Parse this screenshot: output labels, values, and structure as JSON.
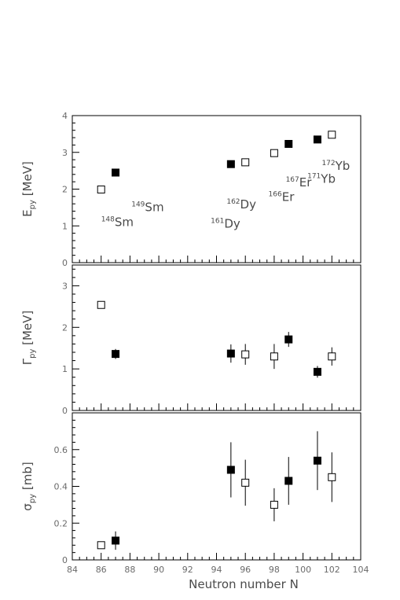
{
  "chart_data": [
    {
      "type": "scatter",
      "ylabel": "E",
      "ylabel_sub": "py",
      "ylabel_unit": " [MeV]",
      "xlim": [
        84,
        104
      ],
      "ylim": [
        0,
        4
      ],
      "yticks": [
        0,
        1,
        2,
        3,
        4
      ],
      "series": [
        {
          "marker": "filled-square",
          "points": [
            {
              "x": 87,
              "y": 2.45
            },
            {
              "x": 95,
              "y": 2.68
            },
            {
              "x": 99,
              "y": 3.23
            },
            {
              "x": 101,
              "y": 3.35
            }
          ]
        },
        {
          "marker": "open-square",
          "points": [
            {
              "x": 86,
              "y": 1.99
            },
            {
              "x": 96,
              "y": 2.73
            },
            {
              "x": 98,
              "y": 2.98
            },
            {
              "x": 102,
              "y": 3.48
            }
          ]
        }
      ],
      "annotations": [
        {
          "mass": "148",
          "element": "Sm",
          "x": 86.0,
          "y": 1.0
        },
        {
          "mass": "149",
          "element": "Sm",
          "x": 88.1,
          "y": 1.4
        },
        {
          "mass": "161",
          "element": "Dy",
          "x": 93.6,
          "y": 0.95
        },
        {
          "mass": "162",
          "element": "Dy",
          "x": 94.7,
          "y": 1.48
        },
        {
          "mass": "166",
          "element": "Er",
          "x": 97.6,
          "y": 1.68
        },
        {
          "mass": "167",
          "element": "Er",
          "x": 98.8,
          "y": 2.07
        },
        {
          "mass": "171",
          "element": "Yb",
          "x": 100.3,
          "y": 2.17
        },
        {
          "mass": "172",
          "element": "Yb",
          "x": 101.3,
          "y": 2.52
        }
      ]
    },
    {
      "type": "scatter",
      "ylabel": "Γ",
      "ylabel_sub": "py",
      "ylabel_unit": " [MeV]",
      "xlim": [
        84,
        104
      ],
      "ylim": [
        0,
        3.5
      ],
      "yticks": [
        0,
        1,
        2,
        3
      ],
      "series": [
        {
          "marker": "filled-square",
          "points": [
            {
              "x": 87,
              "y": 1.36,
              "err": 0.12
            },
            {
              "x": 95,
              "y": 1.37,
              "err": 0.22
            },
            {
              "x": 99,
              "y": 1.71,
              "err": 0.18
            },
            {
              "x": 101,
              "y": 0.93,
              "err": 0.14
            }
          ]
        },
        {
          "marker": "open-square",
          "points": [
            {
              "x": 86,
              "y": 2.54,
              "err": 0
            },
            {
              "x": 96,
              "y": 1.35,
              "err": 0.25
            },
            {
              "x": 98,
              "y": 1.3,
              "err": 0.3
            },
            {
              "x": 102,
              "y": 1.3,
              "err": 0.22
            }
          ]
        }
      ]
    },
    {
      "type": "scatter",
      "ylabel": "σ",
      "ylabel_sub": "py",
      "ylabel_unit": " [mb]",
      "xlabel": "Neutron number N",
      "xlim": [
        84,
        104
      ],
      "ylim": [
        0,
        0.8
      ],
      "yticks": [
        0,
        0.2,
        0.4,
        0.6
      ],
      "xticks": [
        84,
        86,
        88,
        90,
        92,
        94,
        96,
        98,
        100,
        102,
        104
      ],
      "series": [
        {
          "marker": "filled-square",
          "points": [
            {
              "x": 87,
              "y": 0.105,
              "err": 0.05
            },
            {
              "x": 95,
              "y": 0.49,
              "err": 0.15
            },
            {
              "x": 99,
              "y": 0.43,
              "err": 0.13
            },
            {
              "x": 101,
              "y": 0.54,
              "err": 0.16
            }
          ]
        },
        {
          "marker": "open-square",
          "points": [
            {
              "x": 86,
              "y": 0.08,
              "err": 0
            },
            {
              "x": 96,
              "y": 0.42,
              "err": 0.125
            },
            {
              "x": 98,
              "y": 0.3,
              "err": 0.09
            },
            {
              "x": 102,
              "y": 0.45,
              "err": 0.135
            }
          ]
        }
      ]
    }
  ]
}
